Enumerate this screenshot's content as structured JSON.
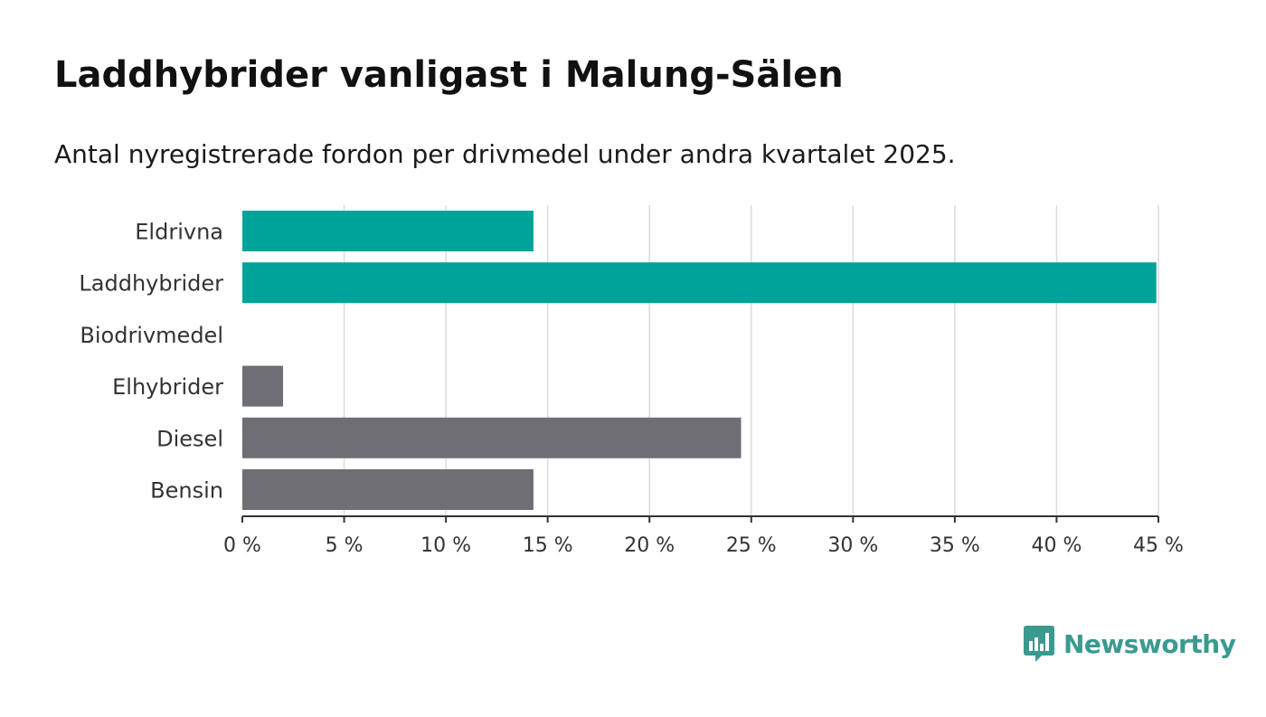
{
  "header": {
    "title": "Laddhybrider vanligast i Malung-Sälen",
    "subtitle": "Antal nyregistrerade fordon per drivmedel under andra kvartalet 2025."
  },
  "brand": {
    "name": "Newsworthy",
    "color": "#3a9a90",
    "icon": "chart-speech-bubble-icon"
  },
  "chart_data": {
    "type": "bar",
    "orientation": "horizontal",
    "categories": [
      "Eldrivna",
      "Laddhybrider",
      "Biodrivmedel",
      "Elhybrider",
      "Diesel",
      "Bensin"
    ],
    "values": [
      14.3,
      44.9,
      0,
      2.0,
      24.5,
      14.3
    ],
    "bar_colors": [
      "#00a398",
      "#00a398",
      "#00a398",
      "#6f6e75",
      "#6f6e75",
      "#6f6e75"
    ],
    "xlim": [
      0,
      45
    ],
    "x_ticks": [
      0,
      5,
      10,
      15,
      20,
      25,
      30,
      35,
      40,
      45
    ],
    "x_tick_labels": [
      "0 %",
      "5 %",
      "10 %",
      "15 %",
      "20 %",
      "25 %",
      "30 %",
      "35 %",
      "40 %",
      "45 %"
    ],
    "grid": true,
    "xlabel": "",
    "ylabel": ""
  }
}
